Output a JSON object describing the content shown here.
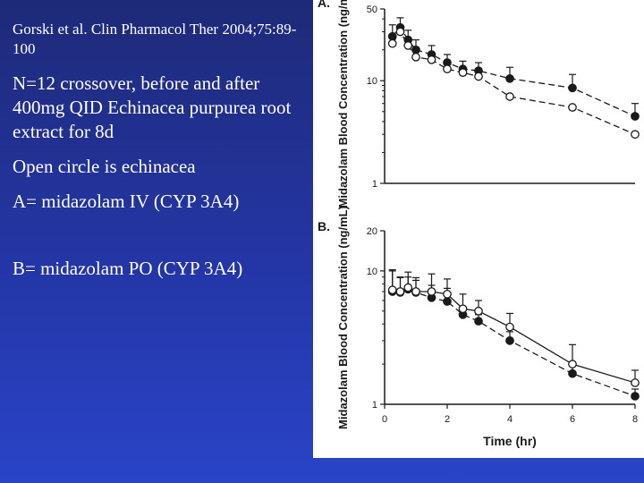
{
  "slide": {
    "citation": "Gorski et al. Clin Pharmacol Ther 2004;75:89-100",
    "study": "N=12 crossover, before and after 400mg QID Echinacea purpurea root extract for 8d",
    "legend_note": "Open circle is echinacea",
    "panel_a_note": "A= midazolam IV (CYP 3A4)",
    "panel_b_note": "B= midazolam PO (CYP 3A4)"
  },
  "colors": {
    "background": "#2436a6",
    "text": "#ffffff",
    "figure_bg": "#ffffff",
    "ink": "#1a1a1a"
  },
  "chart_data": [
    {
      "type": "line",
      "panel_label": "A.",
      "ylabel": "Midazolam Blood Concentration (ng/mL)",
      "xlabel": "",
      "yscale": "log",
      "ylim": [
        1,
        50
      ],
      "xlim": [
        0,
        8
      ],
      "yticks": [
        "1",
        "10",
        "50"
      ],
      "xticks": [],
      "series": [
        {
          "marker": "filled",
          "line": "dashed",
          "x": [
            0.25,
            0.5,
            0.75,
            1,
            1.5,
            2,
            2.5,
            3,
            4,
            6,
            8
          ],
          "y": [
            27,
            33,
            25,
            20,
            18,
            15,
            13,
            12.5,
            10.5,
            8.5,
            4.5
          ],
          "err": [
            8,
            8,
            6,
            5,
            4,
            3,
            2.5,
            2.5,
            3,
            3,
            1.5
          ]
        },
        {
          "marker": "open",
          "line": "dashed",
          "x": [
            0.25,
            0.5,
            0.75,
            1,
            1.5,
            2,
            2.5,
            3,
            4,
            6,
            8
          ],
          "y": [
            23,
            30,
            22,
            17,
            16,
            13,
            12,
            11,
            7,
            5.5,
            3
          ],
          "err": [
            0,
            0,
            0,
            0,
            0,
            0,
            0,
            0,
            0,
            0,
            0
          ]
        }
      ]
    },
    {
      "type": "line",
      "panel_label": "B.",
      "ylabel": "Midazolam Blood Concentration (ng/mL)",
      "xlabel": "Time (hr)",
      "yscale": "log",
      "ylim": [
        1,
        20
      ],
      "xlim": [
        0,
        8
      ],
      "yticks": [
        "1",
        "10",
        "20"
      ],
      "xticks": [
        "0",
        "2",
        "4",
        "6",
        "8"
      ],
      "series": [
        {
          "marker": "filled",
          "line": "dashed",
          "x": [
            0.25,
            0.5,
            0.75,
            1,
            1.5,
            2,
            2.5,
            3,
            4,
            6,
            8
          ],
          "y": [
            7,
            6.9,
            7.3,
            6.9,
            6.3,
            5.9,
            4.7,
            4.2,
            3,
            1.7,
            1.15
          ],
          "err": [
            3,
            2,
            2.5,
            2,
            1.5,
            1.5,
            0.5,
            0.5,
            0.5,
            0.3,
            0.15
          ]
        },
        {
          "marker": "open",
          "line": "solid",
          "x": [
            0.25,
            0.5,
            0.75,
            1,
            1.5,
            2,
            2.5,
            3,
            4,
            6,
            8
          ],
          "y": [
            7.2,
            7,
            7.5,
            7,
            7,
            6.7,
            5.2,
            5,
            3.8,
            2,
            1.45
          ],
          "err": [
            3,
            2,
            1.5,
            1.5,
            2.5,
            2,
            1.5,
            1,
            1,
            0.8,
            0.35
          ]
        }
      ]
    }
  ]
}
